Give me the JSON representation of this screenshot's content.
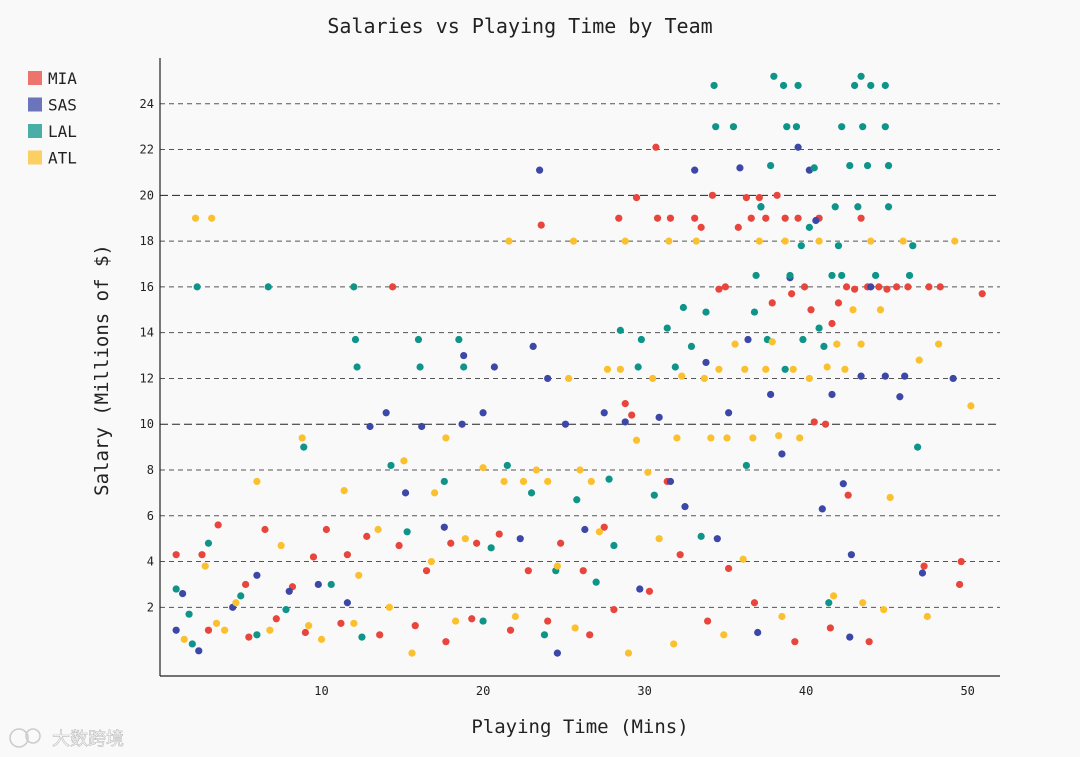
{
  "chart_data": {
    "type": "scatter",
    "title": "Salaries vs Playing Time by Team",
    "xlabel": "Playing Time (Mins)",
    "ylabel": "Salary (Millions of $)",
    "xlim": [
      0,
      52
    ],
    "ylim": [
      -1,
      26
    ],
    "x_ticks": [
      10,
      20,
      30,
      40,
      50
    ],
    "y_ticks": [
      2,
      4,
      6,
      8,
      10,
      12,
      14,
      16,
      18,
      20,
      22,
      24
    ],
    "major_y_gridlines": [
      10,
      20
    ],
    "grid": "horizontal dashed",
    "legend_position": "top-left",
    "series": [
      {
        "name": "MIA",
        "color": "#e8453c",
        "points": [
          [
            1.0,
            4.3
          ],
          [
            2.6,
            4.3
          ],
          [
            3.6,
            5.6
          ],
          [
            5.3,
            3.0
          ],
          [
            6.5,
            5.4
          ],
          [
            8.2,
            2.9
          ],
          [
            9.5,
            4.2
          ],
          [
            10.3,
            5.4
          ],
          [
            11.6,
            4.3
          ],
          [
            12.8,
            5.1
          ],
          [
            14.4,
            16.0
          ],
          [
            14.8,
            4.7
          ],
          [
            16.5,
            3.6
          ],
          [
            18.0,
            4.8
          ],
          [
            19.6,
            4.8
          ],
          [
            21.0,
            5.2
          ],
          [
            22.8,
            3.6
          ],
          [
            23.6,
            18.7
          ],
          [
            24.8,
            4.8
          ],
          [
            26.2,
            3.6
          ],
          [
            27.5,
            5.5
          ],
          [
            28.4,
            19.0
          ],
          [
            28.8,
            10.9
          ],
          [
            29.5,
            19.9
          ],
          [
            30.7,
            22.1
          ],
          [
            30.8,
            19.0
          ],
          [
            31.6,
            19.0
          ],
          [
            32.2,
            4.3
          ],
          [
            33.1,
            19.0
          ],
          [
            33.5,
            18.6
          ],
          [
            34.2,
            20.0
          ],
          [
            34.6,
            15.9
          ],
          [
            35.0,
            16.0
          ],
          [
            35.8,
            18.6
          ],
          [
            36.3,
            19.9
          ],
          [
            36.6,
            19.0
          ],
          [
            37.1,
            19.9
          ],
          [
            37.5,
            19.0
          ],
          [
            37.9,
            15.3
          ],
          [
            38.2,
            20.0
          ],
          [
            38.7,
            19.0
          ],
          [
            39.1,
            15.7
          ],
          [
            39.5,
            19.0
          ],
          [
            39.9,
            16.0
          ],
          [
            40.3,
            15.0
          ],
          [
            40.8,
            19.0
          ],
          [
            41.2,
            10.0
          ],
          [
            41.6,
            14.4
          ],
          [
            42.0,
            15.3
          ],
          [
            42.5,
            16.0
          ],
          [
            43.0,
            15.9
          ],
          [
            43.4,
            19.0
          ],
          [
            43.8,
            16.0
          ],
          [
            44.5,
            16.0
          ],
          [
            45.0,
            15.9
          ],
          [
            45.6,
            16.0
          ],
          [
            46.3,
            16.0
          ],
          [
            47.6,
            16.0
          ],
          [
            48.3,
            16.0
          ],
          [
            50.9,
            15.7
          ],
          [
            3.0,
            1.0
          ],
          [
            5.5,
            0.7
          ],
          [
            7.2,
            1.5
          ],
          [
            9.0,
            0.9
          ],
          [
            11.2,
            1.3
          ],
          [
            13.6,
            0.8
          ],
          [
            15.8,
            1.2
          ],
          [
            17.7,
            0.5
          ],
          [
            19.3,
            1.5
          ],
          [
            21.7,
            1.0
          ],
          [
            24.0,
            1.4
          ],
          [
            26.6,
            0.8
          ],
          [
            28.1,
            1.9
          ],
          [
            30.3,
            2.7
          ],
          [
            33.9,
            1.4
          ],
          [
            36.8,
            2.2
          ],
          [
            39.3,
            0.5
          ],
          [
            41.5,
            1.1
          ],
          [
            42.6,
            6.9
          ],
          [
            43.9,
            0.5
          ],
          [
            47.3,
            3.8
          ],
          [
            49.6,
            4.0
          ],
          [
            49.5,
            3.0
          ],
          [
            40.5,
            10.1
          ],
          [
            29.2,
            10.4
          ],
          [
            35.2,
            3.7
          ],
          [
            31.4,
            7.5
          ]
        ]
      },
      {
        "name": "SAS",
        "color": "#3c47a7",
        "points": [
          [
            1.0,
            1.0
          ],
          [
            1.4,
            2.6
          ],
          [
            2.4,
            0.1
          ],
          [
            4.5,
            2.0
          ],
          [
            6.0,
            3.4
          ],
          [
            8.0,
            2.7
          ],
          [
            9.8,
            3.0
          ],
          [
            11.6,
            2.2
          ],
          [
            13.0,
            9.9
          ],
          [
            14.0,
            10.5
          ],
          [
            15.2,
            7.0
          ],
          [
            16.2,
            9.9
          ],
          [
            17.6,
            5.5
          ],
          [
            18.7,
            10.0
          ],
          [
            18.8,
            13.0
          ],
          [
            20.0,
            10.5
          ],
          [
            20.7,
            12.5
          ],
          [
            22.3,
            5.0
          ],
          [
            23.1,
            13.4
          ],
          [
            23.5,
            21.1
          ],
          [
            24.0,
            12.0
          ],
          [
            25.1,
            10.0
          ],
          [
            26.3,
            5.4
          ],
          [
            27.5,
            10.5
          ],
          [
            28.8,
            10.1
          ],
          [
            29.7,
            2.8
          ],
          [
            30.9,
            10.3
          ],
          [
            31.6,
            7.5
          ],
          [
            32.5,
            6.4
          ],
          [
            33.1,
            21.1
          ],
          [
            33.8,
            12.7
          ],
          [
            34.5,
            5.0
          ],
          [
            35.2,
            10.5
          ],
          [
            35.9,
            21.2
          ],
          [
            36.4,
            13.7
          ],
          [
            37.2,
            19.5
          ],
          [
            37.8,
            11.3
          ],
          [
            38.5,
            8.7
          ],
          [
            39.0,
            16.4
          ],
          [
            39.5,
            22.1
          ],
          [
            40.2,
            21.1
          ],
          [
            40.6,
            18.9
          ],
          [
            41.0,
            6.3
          ],
          [
            41.6,
            11.3
          ],
          [
            42.3,
            7.4
          ],
          [
            42.8,
            4.3
          ],
          [
            43.4,
            12.1
          ],
          [
            44.0,
            16.0
          ],
          [
            44.9,
            12.1
          ],
          [
            45.8,
            11.2
          ],
          [
            46.1,
            12.1
          ],
          [
            47.2,
            3.5
          ],
          [
            49.1,
            12.0
          ],
          [
            24.6,
            0.0
          ],
          [
            37.0,
            0.9
          ],
          [
            42.7,
            0.7
          ]
        ]
      },
      {
        "name": "LAL",
        "color": "#0e9488",
        "points": [
          [
            1.0,
            2.8
          ],
          [
            1.8,
            1.7
          ],
          [
            2.3,
            16.0
          ],
          [
            3.0,
            4.8
          ],
          [
            5.0,
            2.5
          ],
          [
            6.7,
            16.0
          ],
          [
            7.8,
            1.9
          ],
          [
            8.9,
            9.0
          ],
          [
            10.6,
            3.0
          ],
          [
            12.0,
            16.0
          ],
          [
            12.1,
            13.7
          ],
          [
            12.2,
            12.5
          ],
          [
            14.3,
            8.2
          ],
          [
            15.3,
            5.3
          ],
          [
            16.0,
            13.7
          ],
          [
            16.1,
            12.5
          ],
          [
            17.6,
            7.5
          ],
          [
            18.5,
            13.7
          ],
          [
            18.8,
            12.5
          ],
          [
            20.5,
            4.6
          ],
          [
            21.5,
            8.2
          ],
          [
            23.0,
            7.0
          ],
          [
            24.5,
            3.6
          ],
          [
            25.8,
            6.7
          ],
          [
            27.8,
            7.6
          ],
          [
            28.5,
            14.1
          ],
          [
            29.6,
            12.5
          ],
          [
            29.8,
            13.7
          ],
          [
            30.6,
            6.9
          ],
          [
            31.4,
            14.2
          ],
          [
            31.9,
            12.5
          ],
          [
            32.4,
            15.1
          ],
          [
            32.9,
            13.4
          ],
          [
            33.8,
            14.9
          ],
          [
            34.3,
            24.8
          ],
          [
            34.4,
            23.0
          ],
          [
            35.5,
            23.0
          ],
          [
            36.3,
            8.2
          ],
          [
            36.9,
            16.5
          ],
          [
            37.2,
            19.5
          ],
          [
            37.6,
            13.7
          ],
          [
            37.8,
            21.3
          ],
          [
            38.0,
            25.2
          ],
          [
            38.6,
            24.8
          ],
          [
            38.8,
            23.0
          ],
          [
            39.0,
            16.5
          ],
          [
            39.4,
            23.0
          ],
          [
            39.5,
            24.8
          ],
          [
            39.8,
            13.7
          ],
          [
            40.2,
            18.6
          ],
          [
            40.5,
            21.2
          ],
          [
            40.8,
            14.2
          ],
          [
            41.1,
            13.4
          ],
          [
            41.6,
            16.5
          ],
          [
            41.8,
            19.5
          ],
          [
            42.2,
            16.5
          ],
          [
            42.2,
            23.0
          ],
          [
            42.7,
            21.3
          ],
          [
            43.0,
            24.8
          ],
          [
            43.2,
            19.5
          ],
          [
            43.4,
            25.2
          ],
          [
            43.5,
            23.0
          ],
          [
            43.8,
            21.3
          ],
          [
            44.0,
            24.8
          ],
          [
            44.3,
            16.5
          ],
          [
            44.9,
            23.0
          ],
          [
            44.9,
            24.8
          ],
          [
            45.1,
            21.3
          ],
          [
            45.1,
            19.5
          ],
          [
            46.4,
            16.5
          ],
          [
            46.6,
            17.8
          ],
          [
            46.9,
            9.0
          ],
          [
            39.7,
            17.8
          ],
          [
            42.0,
            17.8
          ],
          [
            36.8,
            14.9
          ],
          [
            2.0,
            0.4
          ],
          [
            6.0,
            0.8
          ],
          [
            12.5,
            0.7
          ],
          [
            20.0,
            1.4
          ],
          [
            27.0,
            3.1
          ],
          [
            33.5,
            5.1
          ],
          [
            41.4,
            2.2
          ],
          [
            38.7,
            12.4
          ],
          [
            28.1,
            4.7
          ],
          [
            23.8,
            0.8
          ]
        ]
      },
      {
        "name": "ATL",
        "color": "#fbc02d",
        "points": [
          [
            2.2,
            19.0
          ],
          [
            3.2,
            19.0
          ],
          [
            3.5,
            1.3
          ],
          [
            4.7,
            2.2
          ],
          [
            6.0,
            7.5
          ],
          [
            7.5,
            4.7
          ],
          [
            8.8,
            9.4
          ],
          [
            10.0,
            0.6
          ],
          [
            11.4,
            7.1
          ],
          [
            12.3,
            3.4
          ],
          [
            13.5,
            5.4
          ],
          [
            14.2,
            2.0
          ],
          [
            15.1,
            8.4
          ],
          [
            16.8,
            4.0
          ],
          [
            17.7,
            9.4
          ],
          [
            18.9,
            5.0
          ],
          [
            20.0,
            8.1
          ],
          [
            21.3,
            7.5
          ],
          [
            21.6,
            18.0
          ],
          [
            22.5,
            7.5
          ],
          [
            23.3,
            8.0
          ],
          [
            24.0,
            7.5
          ],
          [
            24.6,
            3.8
          ],
          [
            25.3,
            12.0
          ],
          [
            25.6,
            18.0
          ],
          [
            26.7,
            7.5
          ],
          [
            27.2,
            5.3
          ],
          [
            27.7,
            12.4
          ],
          [
            28.5,
            12.4
          ],
          [
            28.8,
            18.0
          ],
          [
            29.5,
            9.3
          ],
          [
            30.2,
            7.9
          ],
          [
            30.9,
            5.0
          ],
          [
            31.5,
            18.0
          ],
          [
            32.0,
            9.4
          ],
          [
            32.3,
            12.1
          ],
          [
            33.2,
            18.0
          ],
          [
            33.7,
            12.0
          ],
          [
            34.1,
            9.4
          ],
          [
            34.6,
            12.4
          ],
          [
            35.1,
            9.4
          ],
          [
            35.6,
            13.5
          ],
          [
            36.2,
            12.4
          ],
          [
            36.7,
            9.4
          ],
          [
            37.1,
            18.0
          ],
          [
            37.5,
            12.4
          ],
          [
            37.9,
            13.6
          ],
          [
            38.3,
            9.5
          ],
          [
            38.7,
            18.0
          ],
          [
            39.2,
            12.4
          ],
          [
            39.6,
            9.4
          ],
          [
            40.2,
            12.0
          ],
          [
            40.8,
            18.0
          ],
          [
            41.3,
            12.5
          ],
          [
            41.9,
            13.5
          ],
          [
            42.4,
            12.4
          ],
          [
            42.9,
            15.0
          ],
          [
            43.4,
            13.5
          ],
          [
            44.0,
            18.0
          ],
          [
            44.6,
            15.0
          ],
          [
            45.2,
            6.8
          ],
          [
            46.0,
            18.0
          ],
          [
            47.0,
            12.8
          ],
          [
            47.5,
            1.6
          ],
          [
            48.2,
            13.5
          ],
          [
            49.2,
            18.0
          ],
          [
            50.2,
            10.8
          ],
          [
            44.8,
            1.9
          ],
          [
            43.5,
            2.2
          ],
          [
            36.1,
            4.1
          ],
          [
            1.5,
            0.6
          ],
          [
            4.0,
            1.0
          ],
          [
            6.8,
            1.0
          ],
          [
            9.2,
            1.2
          ],
          [
            12.0,
            1.3
          ],
          [
            15.6,
            0.0
          ],
          [
            18.3,
            1.4
          ],
          [
            22.0,
            1.6
          ],
          [
            25.7,
            1.1
          ],
          [
            29.0,
            0.0
          ],
          [
            31.8,
            0.4
          ],
          [
            34.9,
            0.8
          ],
          [
            38.5,
            1.6
          ],
          [
            41.7,
            2.5
          ],
          [
            2.8,
            3.8
          ],
          [
            17.0,
            7.0
          ],
          [
            26.0,
            8.0
          ],
          [
            30.5,
            12.0
          ]
        ]
      }
    ]
  },
  "watermark": "大数跨境"
}
